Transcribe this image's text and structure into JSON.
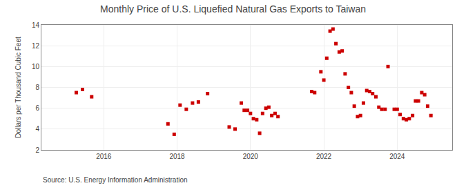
{
  "chart_data": {
    "type": "scatter",
    "title": "Monthly Price of U.S. Liquefied Natural Gas Exports to Taiwan",
    "ylabel": "Dollars per Thousand Cubic Feet",
    "annotations": [
      "Source: U.S. Energy Information Administration"
    ],
    "color": "#cc0000",
    "marker": "square",
    "grid": true,
    "xlim": [
      2014.3,
      2025.5
    ],
    "xticks": [
      2016,
      2018,
      2020,
      2022,
      2024
    ],
    "ylim": [
      2,
      14
    ],
    "yticks": [
      2,
      4,
      6,
      8,
      10,
      12,
      14
    ],
    "x": [
      2015.25,
      2015.42,
      2015.67,
      2017.75,
      2017.92,
      2018.08,
      2018.25,
      2018.42,
      2018.58,
      2018.83,
      2019.42,
      2019.58,
      2019.75,
      2019.83,
      2019.92,
      2020.0,
      2020.08,
      2020.17,
      2020.25,
      2020.33,
      2020.42,
      2020.5,
      2020.58,
      2020.67,
      2020.75,
      2021.67,
      2021.75,
      2021.92,
      2022.0,
      2022.08,
      2022.17,
      2022.25,
      2022.33,
      2022.42,
      2022.5,
      2022.58,
      2022.67,
      2022.75,
      2022.83,
      2022.92,
      2023.0,
      2023.08,
      2023.17,
      2023.25,
      2023.33,
      2023.42,
      2023.5,
      2023.58,
      2023.67,
      2023.75,
      2023.92,
      2024.0,
      2024.08,
      2024.17,
      2024.25,
      2024.33,
      2024.42,
      2024.5,
      2024.58,
      2024.67,
      2024.75,
      2024.83,
      2024.92
    ],
    "values": [
      7.5,
      7.8,
      7.1,
      4.5,
      3.5,
      6.3,
      5.9,
      6.5,
      6.6,
      7.4,
      4.2,
      4.0,
      6.5,
      5.8,
      5.8,
      5.5,
      5.0,
      4.9,
      3.6,
      5.5,
      6.0,
      6.1,
      5.3,
      5.5,
      5.2,
      7.6,
      7.5,
      9.5,
      8.7,
      10.8,
      13.4,
      13.6,
      12.2,
      11.4,
      11.5,
      9.3,
      8.0,
      7.5,
      6.2,
      5.2,
      5.3,
      6.5,
      7.7,
      7.6,
      7.4,
      7.1,
      6.1,
      5.9,
      5.9,
      10.0,
      5.9,
      5.9,
      5.4,
      5.0,
      4.9,
      5.0,
      5.3,
      6.7,
      6.7,
      7.5,
      7.3,
      6.2,
      5.3
    ]
  }
}
